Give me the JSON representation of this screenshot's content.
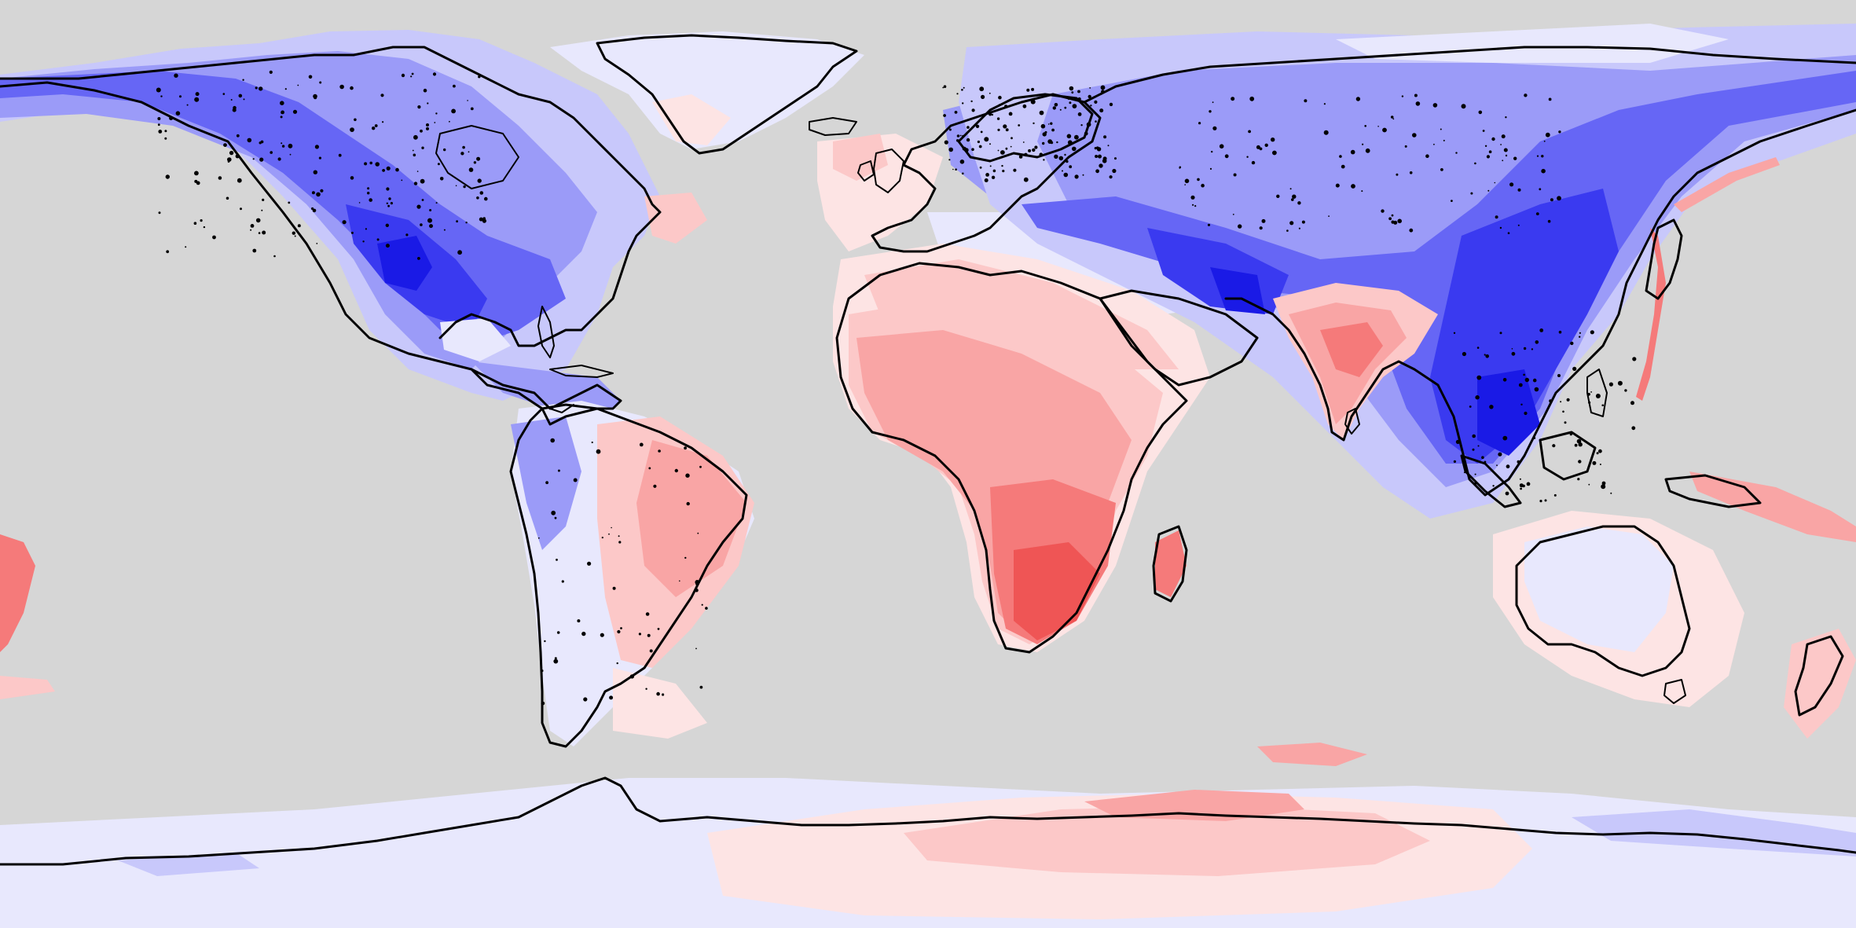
{
  "map": {
    "projection": "equirectangular",
    "extent": "global",
    "background_color": "#d6d6d6",
    "coastline_color": "#000000",
    "colors": {
      "blue_darkest": "#1a1ae6",
      "blue_dark": "#3a3af0",
      "blue_mid": "#6666f5",
      "blue_light": "#9b9bf8",
      "blue_pale": "#c8c8fb",
      "blue_faint": "#e8e8fd",
      "red_faint": "#fde4e4",
      "red_pale": "#fcc8c8",
      "red_light": "#f9a5a5",
      "red_mid": "#f57a7a",
      "red_dark": "#ef5555"
    },
    "regions": [
      {
        "name": "north-america-anomaly",
        "sign": "negative"
      },
      {
        "name": "south-america-anomaly",
        "sign": "mixed"
      },
      {
        "name": "africa-anomaly",
        "sign": "positive"
      },
      {
        "name": "europe-anomaly",
        "sign": "mixed"
      },
      {
        "name": "asia-anomaly",
        "sign": "negative"
      },
      {
        "name": "india-anomaly",
        "sign": "positive"
      },
      {
        "name": "australia-anomaly",
        "sign": "mixed"
      },
      {
        "name": "antarctica-anomaly",
        "sign": "mixed"
      },
      {
        "name": "greenland-anomaly",
        "sign": "negative"
      }
    ]
  }
}
